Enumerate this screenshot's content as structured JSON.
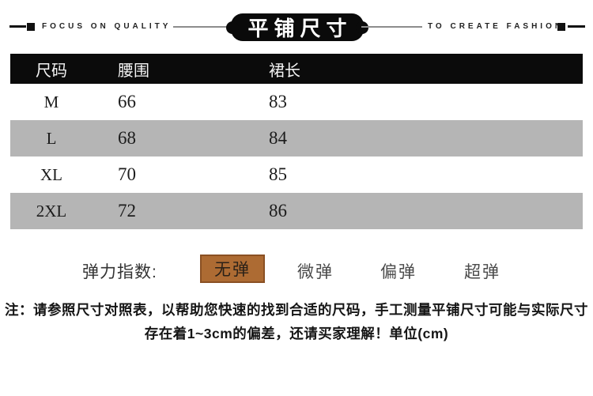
{
  "banner": {
    "left_text": "FOCUS ON QUALITY",
    "title": "平铺尺寸",
    "right_text": "TO CREATE FASHION"
  },
  "table": {
    "headers": [
      "尺码",
      "腰围",
      "裙长"
    ],
    "rows": [
      {
        "size": "M",
        "waist": "66",
        "length": "83"
      },
      {
        "size": "L",
        "waist": "68",
        "length": "84"
      },
      {
        "size": "XL",
        "waist": "70",
        "length": "85"
      },
      {
        "size": "2XL",
        "waist": "72",
        "length": "86"
      }
    ]
  },
  "elasticity": {
    "label": "弹力指数:",
    "options": [
      {
        "label": "无弹",
        "selected": true
      },
      {
        "label": "微弹",
        "selected": false
      },
      {
        "label": "偏弹",
        "selected": false
      },
      {
        "label": "超弹",
        "selected": false
      }
    ]
  },
  "note": {
    "line1": "注：请参照尺寸对照表，以帮助您快速的找到合适的尺码，手工测量平铺尺寸可能与实际尺寸",
    "line2": "存在着1~3cm的偏差，还请买家理解！单位(cm)"
  },
  "colors": {
    "accent_brown": "#ad6b33",
    "accent_brown_border": "#8a5023",
    "row_gray": "#b5b5b5",
    "header_black": "#0b0b0b"
  }
}
